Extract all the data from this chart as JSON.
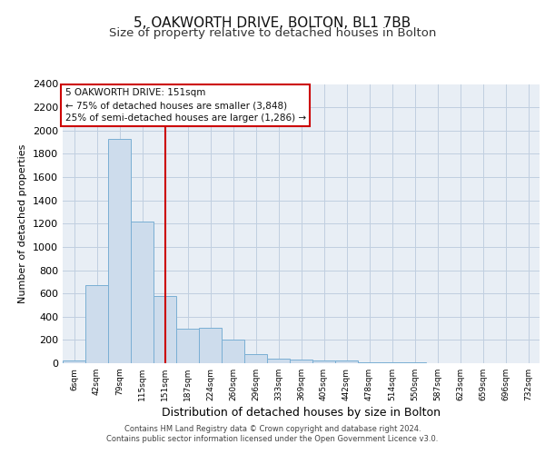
{
  "title": "5, OAKWORTH DRIVE, BOLTON, BL1 7BB",
  "subtitle": "Size of property relative to detached houses in Bolton",
  "xlabel": "Distribution of detached houses by size in Bolton",
  "ylabel": "Number of detached properties",
  "footer1": "Contains HM Land Registry data © Crown copyright and database right 2024.",
  "footer2": "Contains public sector information licensed under the Open Government Licence v3.0.",
  "annotation_line1": "5 OAKWORTH DRIVE: 151sqm",
  "annotation_line2": "← 75% of detached houses are smaller (3,848)",
  "annotation_line3": "25% of semi-detached houses are larger (1,286) →",
  "bar_labels": [
    "6sqm",
    "42sqm",
    "79sqm",
    "115sqm",
    "151sqm",
    "187sqm",
    "224sqm",
    "260sqm",
    "296sqm",
    "333sqm",
    "369sqm",
    "405sqm",
    "442sqm",
    "478sqm",
    "514sqm",
    "550sqm",
    "587sqm",
    "623sqm",
    "659sqm",
    "696sqm",
    "732sqm"
  ],
  "bar_values": [
    20,
    668,
    1930,
    1220,
    580,
    300,
    305,
    200,
    75,
    40,
    30,
    25,
    25,
    10,
    10,
    5,
    3,
    2,
    1,
    1,
    1
  ],
  "bar_color": "#cddcec",
  "bar_edge_color": "#7aafd4",
  "red_line_index": 4,
  "red_line_color": "#cc0000",
  "annotation_box_color": "#cc0000",
  "ylim": [
    0,
    2400
  ],
  "yticks": [
    0,
    200,
    400,
    600,
    800,
    1000,
    1200,
    1400,
    1600,
    1800,
    2000,
    2200,
    2400
  ],
  "grid_color": "#c0cfe0",
  "background_color": "#e8eef5",
  "fig_background": "#ffffff",
  "title_fontsize": 11,
  "subtitle_fontsize": 9.5,
  "annotation_fontsize": 7.5,
  "ylabel_fontsize": 8,
  "xlabel_fontsize": 9,
  "ytick_fontsize": 8,
  "xtick_fontsize": 6.5,
  "footer_fontsize": 6
}
